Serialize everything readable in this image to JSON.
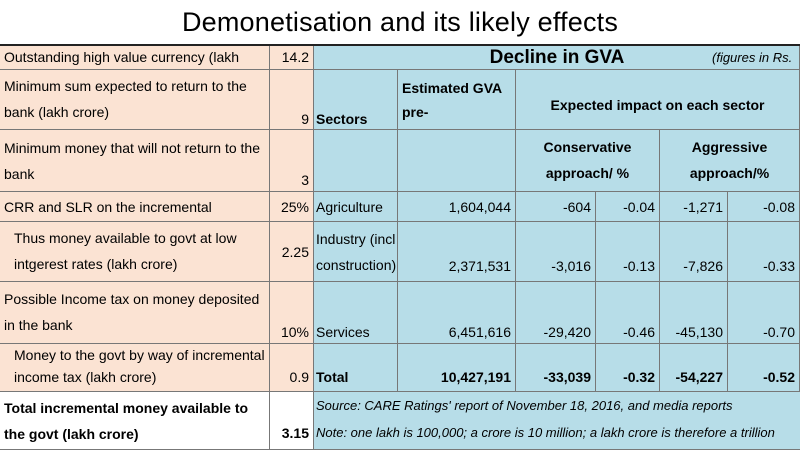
{
  "title": "Demonetisation and its likely effects",
  "left_rows": [
    {
      "label": "Outstanding high value currency (lakh crore)",
      "value": "14.2"
    },
    {
      "label": "Minimum sum expected to return to the bank (lakh crore)",
      "value": "9"
    },
    {
      "label": "Minimum money that will not return to the bank",
      "value": "3"
    },
    {
      "label": "CRR and SLR on the incremental deposits",
      "value": "25%"
    },
    {
      "label": "Thus money available to govt at low intgerest rates  (lakh crore)",
      "value": "2.25"
    },
    {
      "label": "Possible Income tax on money deposited in the bank",
      "value": "10%"
    },
    {
      "label": "Money to the govt by way of incremental income tax (lakh crore)",
      "value": "0.9"
    },
    {
      "label": "Total incremental money available to the govt  (lakh crore)",
      "value": "3.15"
    }
  ],
  "gva": {
    "title": "Decline in GVA",
    "unit_note": "(figures in Rs.",
    "col_sectors": "Sectors",
    "col_estimated": "Estimated  GVA pre-demonetisation",
    "col_expected": "Expected impact on each sector",
    "col_conservative": "Conservative approach/ % difference",
    "col_aggressive": "Aggressive approach/% difference",
    "rows": [
      {
        "sector": "Agriculture",
        "gva": "1,604,044",
        "cons": "-604",
        "cons_pct": "-0.04",
        "agg": "-1,271",
        "agg_pct": "-0.08"
      },
      {
        "sector": "Industry (incl construction)",
        "gva": "2,371,531",
        "cons": "-3,016",
        "cons_pct": "-0.13",
        "agg": "-7,826",
        "agg_pct": "-0.33"
      },
      {
        "sector": "Services",
        "gva": "6,451,616",
        "cons": "-29,420",
        "cons_pct": "-0.46",
        "agg": "-45,130",
        "agg_pct": "-0.70"
      },
      {
        "sector": "Total",
        "gva": "10,427,191",
        "cons": "-33,039",
        "cons_pct": "-0.32",
        "agg": "-54,227",
        "agg_pct": "-0.52"
      }
    ],
    "source": "Source: CARE Ratings' report of November 18, 2016, and media reports",
    "note": "Note: one lakh is 100,000; a crore is 10 million; a lakh crore is therefore a trillion"
  }
}
